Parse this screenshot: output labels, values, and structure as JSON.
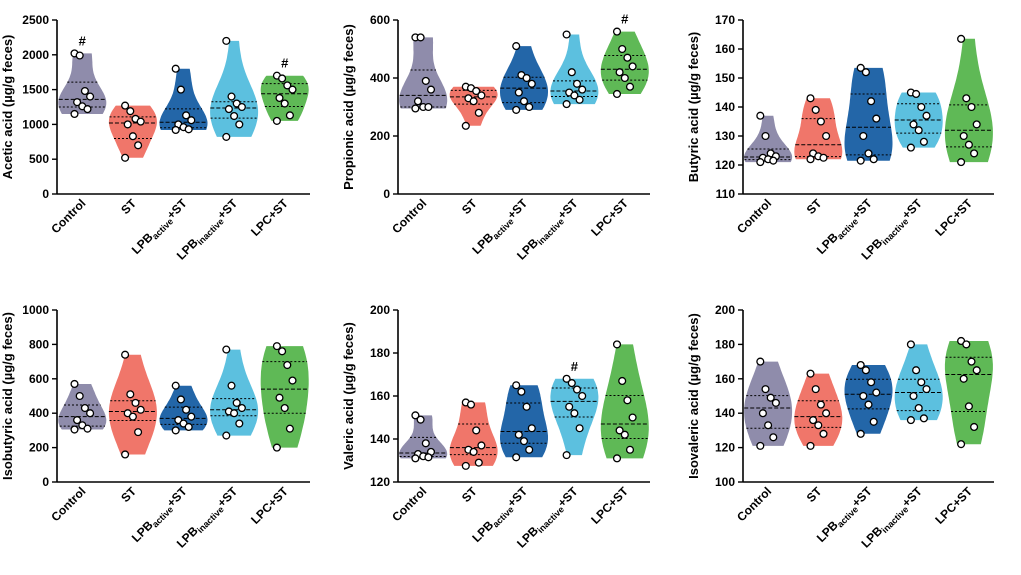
{
  "colors": {
    "Control": "#8f8cab",
    "ST": "#f0766a",
    "LPB_active_ST": "#2366a8",
    "LPB_inactive_ST": "#5cc0df",
    "LPC_ST": "#5fb956"
  },
  "categories": [
    {
      "key": "Control",
      "label": "Control"
    },
    {
      "key": "ST",
      "label": "ST"
    },
    {
      "key": "LPB_active_ST",
      "base": "LPB",
      "sub": "active",
      "suffix": "+ST"
    },
    {
      "key": "LPB_inactive_ST",
      "base": "LPB",
      "sub": "inactive",
      "suffix": "+ST"
    },
    {
      "key": "LPC_ST",
      "label": "LPC+ST"
    }
  ],
  "chart_data": [
    {
      "type": "violin",
      "ylabel": "Acetic acid (µg/g feces)",
      "ylim": [
        0,
        2500
      ],
      "yticks": [
        "0",
        "500",
        "1000",
        "1500",
        "2000",
        "2500"
      ],
      "series": [
        {
          "name": "Control",
          "values": [
            2020,
            1990,
            1480,
            1400,
            1320,
            1260,
            1220,
            1150
          ],
          "mark": "#"
        },
        {
          "name": "ST",
          "values": [
            1270,
            1190,
            1080,
            1040,
            1000,
            830,
            700,
            520
          ],
          "mark": ""
        },
        {
          "name": "LPB_active_ST",
          "values": [
            1800,
            1500,
            1130,
            1060,
            1000,
            960,
            930,
            920
          ],
          "mark": ""
        },
        {
          "name": "LPB_inactive_ST",
          "values": [
            2200,
            1400,
            1300,
            1250,
            1220,
            1120,
            1000,
            820
          ],
          "mark": ""
        },
        {
          "name": "LPC_ST",
          "values": [
            1700,
            1660,
            1560,
            1500,
            1380,
            1300,
            1130,
            1050
          ],
          "mark": "#"
        }
      ]
    },
    {
      "type": "violin",
      "ylabel": "Propionic acid (µg/g feces)",
      "ylim": [
        0,
        600
      ],
      "yticks": [
        "0",
        "200",
        "400",
        "600"
      ],
      "series": [
        {
          "name": "Control",
          "values": [
            540,
            540,
            390,
            360,
            320,
            300,
            300,
            295
          ],
          "mark": ""
        },
        {
          "name": "ST",
          "values": [
            370,
            365,
            355,
            340,
            330,
            320,
            280,
            235
          ],
          "mark": ""
        },
        {
          "name": "LPB_active_ST",
          "values": [
            510,
            410,
            400,
            380,
            350,
            320,
            300,
            290
          ],
          "mark": ""
        },
        {
          "name": "LPB_inactive_ST",
          "values": [
            550,
            420,
            380,
            360,
            350,
            340,
            325,
            310
          ],
          "mark": ""
        },
        {
          "name": "LPC_ST",
          "values": [
            560,
            500,
            470,
            440,
            420,
            400,
            370,
            345
          ],
          "mark": "#"
        }
      ]
    },
    {
      "type": "violin",
      "ylabel": "Butyric acid (µg/g feces)",
      "ylim": [
        110,
        170
      ],
      "yticks": [
        "110",
        "120",
        "130",
        "140",
        "150",
        "160",
        "170"
      ],
      "series": [
        {
          "name": "Control",
          "values": [
            137,
            130,
            124,
            123,
            122.5,
            122,
            121.5,
            121
          ],
          "mark": ""
        },
        {
          "name": "ST",
          "values": [
            143,
            139,
            135,
            130,
            124,
            123,
            122.5,
            122
          ],
          "mark": ""
        },
        {
          "name": "LPB_active_ST",
          "values": [
            153.5,
            152,
            142,
            136,
            130,
            124,
            122,
            121.5
          ],
          "mark": ""
        },
        {
          "name": "LPB_inactive_ST",
          "values": [
            145,
            144.5,
            140,
            137,
            134,
            132,
            128,
            126
          ],
          "mark": ""
        },
        {
          "name": "LPC_ST",
          "values": [
            163.5,
            143,
            140,
            134,
            130,
            127,
            124,
            121
          ],
          "mark": ""
        }
      ]
    },
    {
      "type": "violin",
      "ylabel": "Isobutyric acid (µg/g feces)",
      "ylim": [
        0,
        1000
      ],
      "yticks": [
        "0",
        "200",
        "400",
        "600",
        "800",
        "1000"
      ],
      "series": [
        {
          "name": "Control",
          "values": [
            570,
            500,
            430,
            400,
            360,
            330,
            310,
            305
          ],
          "mark": ""
        },
        {
          "name": "ST",
          "values": [
            740,
            510,
            460,
            420,
            400,
            380,
            290,
            160
          ],
          "mark": ""
        },
        {
          "name": "LPB_active_ST",
          "values": [
            560,
            480,
            420,
            380,
            360,
            340,
            320,
            300
          ],
          "mark": ""
        },
        {
          "name": "LPB_inactive_ST",
          "values": [
            770,
            560,
            460,
            430,
            410,
            400,
            340,
            270
          ],
          "mark": ""
        },
        {
          "name": "LPC_ST",
          "values": [
            790,
            760,
            680,
            590,
            490,
            430,
            310,
            200
          ],
          "mark": ""
        }
      ]
    },
    {
      "type": "violin",
      "ylabel": "Valeric acid (µg/g feces)",
      "ylim": [
        120,
        200
      ],
      "yticks": [
        "120",
        "140",
        "160",
        "180",
        "200"
      ],
      "series": [
        {
          "name": "Control",
          "values": [
            151,
            149,
            138,
            134,
            133,
            132,
            131.5,
            131
          ],
          "mark": ""
        },
        {
          "name": "ST",
          "values": [
            157,
            156,
            144,
            137,
            135,
            134,
            129,
            127.5
          ],
          "mark": ""
        },
        {
          "name": "LPB_active_ST",
          "values": [
            165,
            162,
            155,
            145,
            142,
            139,
            135,
            131.5
          ],
          "mark": ""
        },
        {
          "name": "LPB_inactive_ST",
          "values": [
            168,
            166,
            163,
            160,
            155,
            152,
            145,
            132.5
          ],
          "mark": "#"
        },
        {
          "name": "LPC_ST",
          "values": [
            184,
            167,
            158,
            150,
            144,
            142,
            135,
            131
          ],
          "mark": ""
        }
      ]
    },
    {
      "type": "violin",
      "ylabel": "Isovaleric acid (µg/g feces)",
      "ylim": [
        100,
        200
      ],
      "yticks": [
        "100",
        "120",
        "140",
        "160",
        "180",
        "200"
      ],
      "series": [
        {
          "name": "Control",
          "values": [
            170,
            154,
            149,
            146,
            140,
            133,
            126,
            121
          ],
          "mark": ""
        },
        {
          "name": "ST",
          "values": [
            163,
            154,
            145,
            140,
            136,
            133,
            128,
            121
          ],
          "mark": ""
        },
        {
          "name": "LPB_active_ST",
          "values": [
            168,
            165,
            158,
            152,
            150,
            145,
            135,
            128
          ],
          "mark": ""
        },
        {
          "name": "LPB_inactive_ST",
          "values": [
            180,
            165,
            158,
            154,
            150,
            143,
            137,
            136
          ],
          "mark": ""
        },
        {
          "name": "LPC_ST",
          "values": [
            182,
            180,
            170,
            165,
            160,
            144,
            132,
            122
          ],
          "mark": ""
        }
      ]
    }
  ]
}
